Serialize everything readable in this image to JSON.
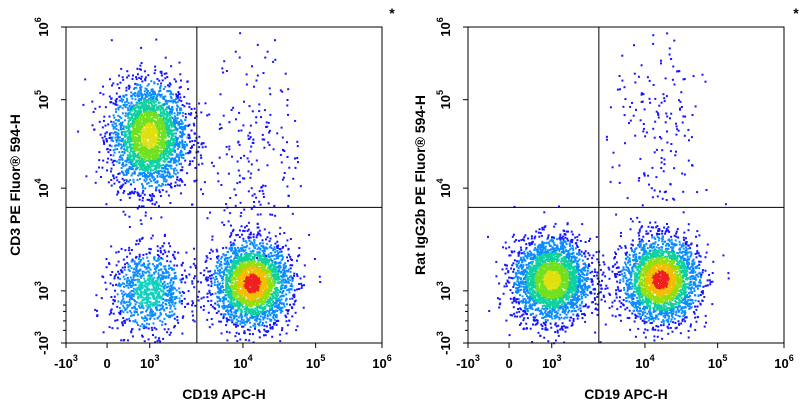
{
  "chart_data": [
    {
      "type": "scatter",
      "subtype": "flow-cytometry-density-plot",
      "xlabel": "CD19 APC-H",
      "ylabel": "CD3 PE Fluor® 594-H",
      "marker": "*",
      "x_scale": "biexponential",
      "y_scale": "biexponential",
      "x_ticks": [
        {
          "base": "-10",
          "exp": "3"
        },
        {
          "base": "0",
          "exp": ""
        },
        {
          "base": "10",
          "exp": "3"
        },
        {
          "base": "10",
          "exp": "4"
        },
        {
          "base": "10",
          "exp": "5"
        },
        {
          "base": "10",
          "exp": "6"
        }
      ],
      "y_ticks": [
        {
          "base": "-10",
          "exp": "3"
        },
        {
          "base": "10",
          "exp": "3"
        },
        {
          "base": "10",
          "exp": "4"
        },
        {
          "base": "10",
          "exp": "5"
        },
        {
          "base": "10",
          "exp": "6"
        }
      ],
      "gate": {
        "x": 3200,
        "y": 6500
      },
      "populations": [
        {
          "center_x": 800,
          "center_y": 40000,
          "relative_density": 1.0,
          "color_scale": "blue-green-yellow"
        },
        {
          "center_x": 800,
          "center_y": 1000,
          "relative_density": 0.35,
          "color_scale": "blue-cyan"
        },
        {
          "center_x": 13000,
          "center_y": 1200,
          "relative_density": 1.0,
          "color_scale": "blue-green-yellow-red"
        },
        {
          "center_x": 15000,
          "center_y": 30000,
          "relative_density": 0.05,
          "color_scale": "blue"
        }
      ],
      "grid": false
    },
    {
      "type": "scatter",
      "subtype": "flow-cytometry-density-plot",
      "xlabel": "CD19 APC-H",
      "ylabel": "Rat IgG2b PE Fluor® 594-H",
      "marker": "*",
      "x_scale": "biexponential",
      "y_scale": "biexponential",
      "x_ticks": [
        {
          "base": "-10",
          "exp": "3"
        },
        {
          "base": "0",
          "exp": ""
        },
        {
          "base": "10",
          "exp": "3"
        },
        {
          "base": "10",
          "exp": "4"
        },
        {
          "base": "10",
          "exp": "5"
        },
        {
          "base": "10",
          "exp": "6"
        }
      ],
      "y_ticks": [
        {
          "base": "-10",
          "exp": "3"
        },
        {
          "base": "10",
          "exp": "3"
        },
        {
          "base": "10",
          "exp": "4"
        },
        {
          "base": "10",
          "exp": "5"
        },
        {
          "base": "10",
          "exp": "6"
        }
      ],
      "gate": {
        "x": 3200,
        "y": 6500
      },
      "populations": [
        {
          "center_x": 900,
          "center_y": 1300,
          "relative_density": 1.0,
          "color_scale": "blue-green-yellow"
        },
        {
          "center_x": 16000,
          "center_y": 1300,
          "relative_density": 1.0,
          "color_scale": "blue-green-yellow-red"
        },
        {
          "center_x": 15000,
          "center_y": 40000,
          "relative_density": 0.04,
          "color_scale": "blue"
        }
      ],
      "grid": false
    }
  ]
}
